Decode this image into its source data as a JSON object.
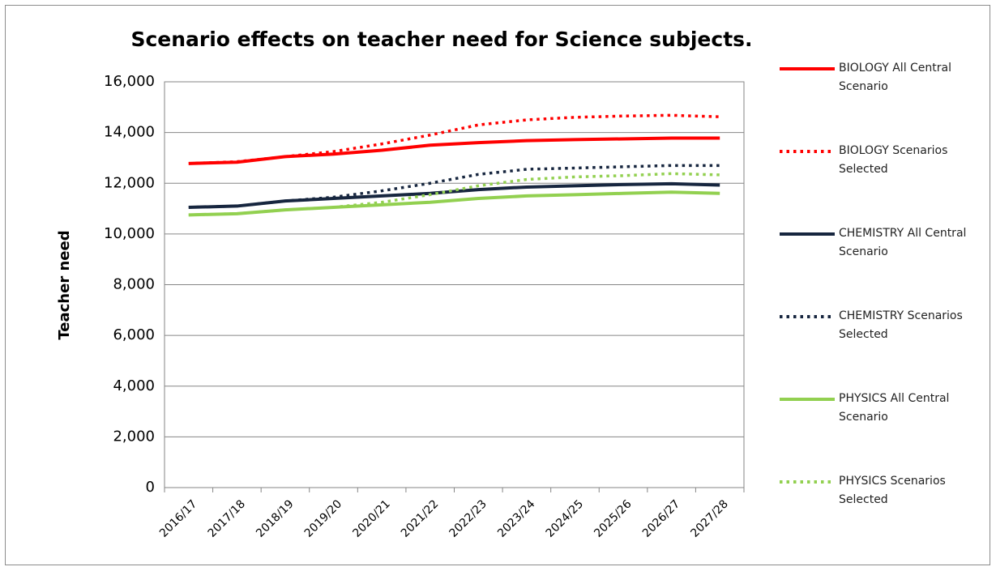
{
  "chart_data": {
    "type": "line",
    "title": "Scenario effects on teacher need for Science subjects.",
    "y_label": "Teacher need",
    "categories": [
      "2016/17",
      "2017/18",
      "2018/19",
      "2019/20",
      "2020/21",
      "2021/22",
      "2022/23",
      "2023/24",
      "2024/25",
      "2025/26",
      "2026/27",
      "2027/28"
    ],
    "series": [
      {
        "name": "BIOLOGY All Central Scenario",
        "color": "#ff0000",
        "style": "solid",
        "values": [
          12780,
          12830,
          13050,
          13150,
          13300,
          13500,
          13600,
          13680,
          13720,
          13750,
          13780,
          13780
        ]
      },
      {
        "name": "BIOLOGY Scenarios Selected",
        "color": "#ff0000",
        "style": "dotted",
        "values": [
          12780,
          12850,
          13050,
          13250,
          13550,
          13900,
          14300,
          14500,
          14600,
          14650,
          14680,
          14620
        ]
      },
      {
        "name": "CHEMISTRY All Central Scenario",
        "color": "#17263f",
        "style": "solid",
        "values": [
          11050,
          11100,
          11300,
          11400,
          11500,
          11600,
          11750,
          11850,
          11900,
          11950,
          11980,
          11930
        ]
      },
      {
        "name": "CHEMISTRY Scenarios Selected",
        "color": "#17263f",
        "style": "dotted",
        "values": [
          11050,
          11100,
          11300,
          11450,
          11700,
          12000,
          12350,
          12550,
          12600,
          12650,
          12700,
          12700
        ]
      },
      {
        "name": "PHYSICS All Central Scenario",
        "color": "#92d050",
        "style": "solid",
        "values": [
          10750,
          10800,
          10950,
          11050,
          11150,
          11250,
          11400,
          11500,
          11550,
          11600,
          11650,
          11600
        ]
      },
      {
        "name": "PHYSICS Scenarios Selected",
        "color": "#92d050",
        "style": "dotted",
        "values": [
          10750,
          10800,
          10950,
          11050,
          11250,
          11550,
          11900,
          12150,
          12250,
          12300,
          12380,
          12330
        ]
      }
    ],
    "ylim": [
      0,
      16000
    ],
    "yticks": [
      0,
      {
        "value": 2000,
        "label": "2,000"
      },
      {
        "value": 4000,
        "label": "4,000"
      },
      {
        "value": 6000,
        "label": "6,000"
      },
      {
        "value": 8000,
        "label": "8,000"
      },
      {
        "value": 10000,
        "label": "10,000"
      },
      {
        "value": 12000,
        "label": "12,000"
      },
      {
        "value": 14000,
        "label": "14,000"
      },
      {
        "value": 16000,
        "label": "16,000"
      }
    ],
    "grid": true,
    "legend": "right"
  }
}
